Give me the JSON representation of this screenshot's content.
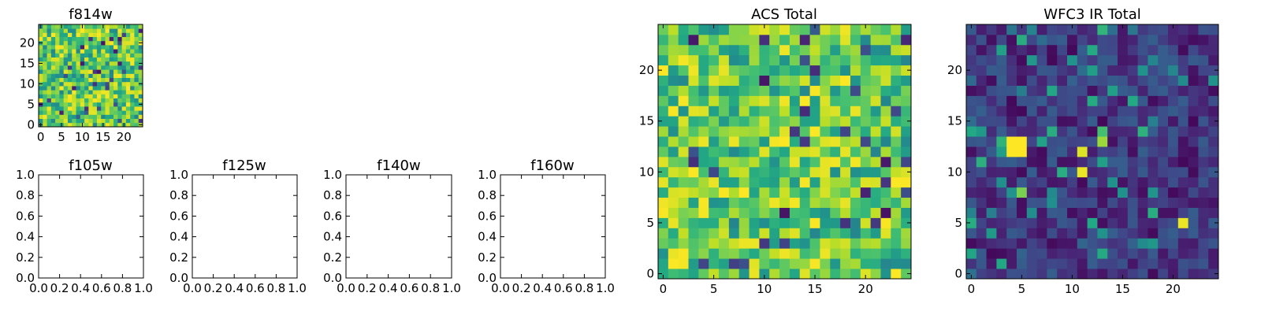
{
  "colormap": "viridis",
  "colors": {
    "axes": "#000000",
    "background": "#ffffff"
  },
  "chart_data": [
    {
      "id": "f814w",
      "type": "heatmap",
      "title": "f814w",
      "grid_size": 25,
      "seed": 814,
      "profile": "high",
      "xticks": [
        "0",
        "5",
        "10",
        "15",
        "20"
      ],
      "yticks": [
        "0",
        "5",
        "10",
        "15",
        "20"
      ],
      "xlim": [
        -0.5,
        24.5
      ],
      "ylim": [
        -0.5,
        24.5
      ]
    },
    {
      "id": "f105w",
      "type": "empty",
      "title": "f105w",
      "xticks": [
        "0.0",
        "0.2",
        "0.4",
        "0.6",
        "0.8",
        "1.0"
      ],
      "yticks": [
        "0.0",
        "0.2",
        "0.4",
        "0.6",
        "0.8",
        "1.0"
      ],
      "xlim": [
        0,
        1
      ],
      "ylim": [
        0,
        1
      ]
    },
    {
      "id": "f125w",
      "type": "empty",
      "title": "f125w",
      "xticks": [
        "0.0",
        "0.2",
        "0.4",
        "0.6",
        "0.8",
        "1.0"
      ],
      "yticks": [
        "0.0",
        "0.2",
        "0.4",
        "0.6",
        "0.8",
        "1.0"
      ],
      "xlim": [
        0,
        1
      ],
      "ylim": [
        0,
        1
      ]
    },
    {
      "id": "f140w",
      "type": "empty",
      "title": "f140w",
      "xticks": [
        "0.0",
        "0.2",
        "0.4",
        "0.6",
        "0.8",
        "1.0"
      ],
      "yticks": [
        "0.0",
        "0.2",
        "0.4",
        "0.6",
        "0.8",
        "1.0"
      ],
      "xlim": [
        0,
        1
      ],
      "ylim": [
        0,
        1
      ]
    },
    {
      "id": "f160w",
      "type": "empty",
      "title": "f160w",
      "xticks": [
        "0.0",
        "0.2",
        "0.4",
        "0.6",
        "0.8",
        "1.0"
      ],
      "yticks": [
        "0.0",
        "0.2",
        "0.4",
        "0.6",
        "0.8",
        "1.0"
      ],
      "xlim": [
        0,
        1
      ],
      "ylim": [
        0,
        1
      ]
    },
    {
      "id": "acs-total",
      "type": "heatmap",
      "title": "ACS Total",
      "grid_size": 25,
      "seed": 1234,
      "profile": "high",
      "xticks": [
        "0",
        "5",
        "10",
        "15",
        "20"
      ],
      "yticks": [
        "0",
        "5",
        "10",
        "15",
        "20"
      ],
      "xlim": [
        -0.5,
        24.5
      ],
      "ylim": [
        -0.5,
        24.5
      ]
    },
    {
      "id": "wfc3-ir-total",
      "type": "heatmap",
      "title": "WFC3 IR Total",
      "grid_size": 25,
      "seed": 4321,
      "profile": "low",
      "xticks": [
        "0",
        "5",
        "10",
        "15",
        "20"
      ],
      "yticks": [
        "0",
        "5",
        "10",
        "15",
        "20"
      ],
      "xlim": [
        -0.5,
        24.5
      ],
      "ylim": [
        -0.5,
        24.5
      ],
      "hot_pixels": [
        {
          "x": 4,
          "y": 12,
          "v": 1.0
        },
        {
          "x": 5,
          "y": 12,
          "v": 1.0
        },
        {
          "x": 4,
          "y": 13,
          "v": 1.0
        },
        {
          "x": 5,
          "y": 13,
          "v": 1.0
        },
        {
          "x": 11,
          "y": 10,
          "v": 0.97
        },
        {
          "x": 11,
          "y": 12,
          "v": 0.95
        },
        {
          "x": 13,
          "y": 13,
          "v": 0.85
        },
        {
          "x": 21,
          "y": 5,
          "v": 0.97
        },
        {
          "x": 5,
          "y": 8,
          "v": 0.8
        },
        {
          "x": 0,
          "y": 14,
          "v": 0.6
        },
        {
          "x": 13,
          "y": 14,
          "v": 0.7
        },
        {
          "x": 13,
          "y": 24,
          "v": 0.65
        }
      ]
    }
  ]
}
